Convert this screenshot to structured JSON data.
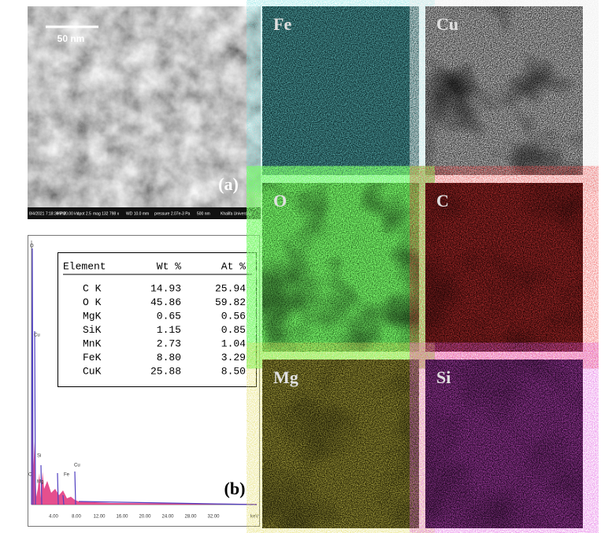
{
  "sem": {
    "label": "(a)",
    "scale_bar": "50 nm",
    "info_bar": [
      "8/4/2021 7:18:30 PM",
      "HV 20.00 kV",
      "spot 2.5",
      "mag 132 798 x",
      "WD 10.0 mm",
      "pressure 2.07e-3 Pa",
      "500 nm",
      "Khalifa University"
    ]
  },
  "spectrum": {
    "label": "(b)",
    "peak_labels": [
      "O",
      "Cu",
      "Si",
      "Fe",
      "Mg",
      "Cu",
      "C"
    ],
    "x_ticks": [
      "4.00",
      "8.00",
      "12.00",
      "16.00",
      "20.00",
      "24.00",
      "28.00",
      "32.00"
    ],
    "x_unit": "keV",
    "table": {
      "header": [
        "Element",
        "Wt %",
        "At %"
      ],
      "rows": [
        [
          "C K",
          "14.93",
          "25.94"
        ],
        [
          "O K",
          "45.86",
          "59.82"
        ],
        [
          "MgK",
          "0.65",
          "0.56"
        ],
        [
          "SiK",
          "1.15",
          "0.85"
        ],
        [
          "MnK",
          "2.73",
          "1.04"
        ],
        [
          "FeK",
          "8.80",
          "3.29"
        ],
        [
          "CuK",
          "25.88",
          "8.50"
        ]
      ]
    }
  },
  "maps": [
    {
      "label": "Fe"
    },
    {
      "label": "Cu"
    },
    {
      "label": "O"
    },
    {
      "label": "C"
    },
    {
      "label": "Mg"
    },
    {
      "label": "Si"
    }
  ]
}
